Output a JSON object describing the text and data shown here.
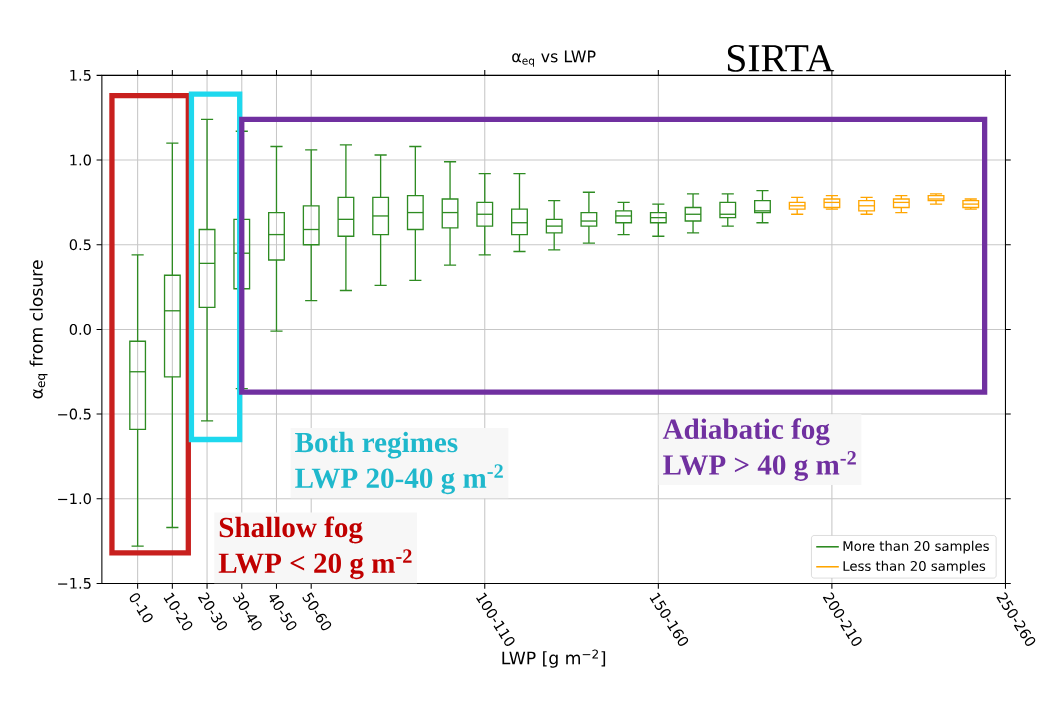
{
  "chart_data": {
    "type": "box",
    "title": "α$_{eq}$ vs LWP",
    "xlabel": "LWP [g m$^{−2}$]",
    "ylabel": "α$_{eq}$ from closure",
    "annotations": [
      "SIRTA",
      "Shallow fog",
      "LWP < 20 g m$^{-2}$",
      "Both regimes",
      "LWP 20-40 g m$^{-2}$",
      "Adiabatic fog",
      "LWP > 40 g m$^{-2}$"
    ],
    "categories": [
      "0-10",
      "10-20",
      "20-30",
      "30-40",
      "40-50",
      "50-60",
      null,
      null,
      null,
      null,
      "100-110",
      null,
      null,
      null,
      null,
      "150-160",
      null,
      null,
      null,
      null,
      "200-210",
      null,
      null,
      null,
      null,
      "250-260"
    ],
    "series": [
      {
        "name": "More than 20 samples",
        "color": "#2e8b22",
        "boxes": [
          {
            "low": -1.28,
            "q1": -0.59,
            "median": -0.25,
            "q3": -0.07,
            "high": 0.44
          },
          {
            "low": -1.17,
            "q1": -0.28,
            "median": 0.11,
            "q3": 0.32,
            "high": 1.1
          },
          {
            "low": -0.54,
            "q1": 0.13,
            "median": 0.39,
            "q3": 0.59,
            "high": 1.24
          },
          {
            "low": -0.35,
            "q1": 0.24,
            "median": 0.45,
            "q3": 0.65,
            "high": 1.17
          },
          {
            "low": -0.01,
            "q1": 0.41,
            "median": 0.56,
            "q3": 0.69,
            "high": 1.08
          },
          {
            "low": 0.17,
            "q1": 0.5,
            "median": 0.59,
            "q3": 0.73,
            "high": 1.06
          },
          {
            "low": 0.23,
            "q1": 0.55,
            "median": 0.65,
            "q3": 0.78,
            "high": 1.09
          },
          {
            "low": 0.26,
            "q1": 0.56,
            "median": 0.67,
            "q3": 0.78,
            "high": 1.03
          },
          {
            "low": 0.29,
            "q1": 0.59,
            "median": 0.69,
            "q3": 0.79,
            "high": 1.08
          },
          {
            "low": 0.38,
            "q1": 0.6,
            "median": 0.69,
            "q3": 0.77,
            "high": 0.99
          },
          {
            "low": 0.44,
            "q1": 0.61,
            "median": 0.68,
            "q3": 0.75,
            "high": 0.92
          },
          {
            "low": 0.46,
            "q1": 0.56,
            "median": 0.63,
            "q3": 0.71,
            "high": 0.92
          },
          {
            "low": 0.47,
            "q1": 0.57,
            "median": 0.61,
            "q3": 0.65,
            "high": 0.76
          },
          {
            "low": 0.51,
            "q1": 0.61,
            "median": 0.64,
            "q3": 0.69,
            "high": 0.81
          },
          {
            "low": 0.56,
            "q1": 0.63,
            "median": 0.67,
            "q3": 0.7,
            "high": 0.75
          },
          {
            "low": 0.55,
            "q1": 0.63,
            "median": 0.66,
            "q3": 0.69,
            "high": 0.74
          },
          {
            "low": 0.57,
            "q1": 0.64,
            "median": 0.68,
            "q3": 0.72,
            "high": 0.8
          },
          {
            "low": 0.61,
            "q1": 0.66,
            "median": 0.68,
            "q3": 0.75,
            "high": 0.8
          },
          {
            "low": 0.63,
            "q1": 0.69,
            "median": 0.7,
            "q3": 0.76,
            "high": 0.82
          },
          null,
          null,
          null,
          null,
          null,
          null,
          null
        ]
      },
      {
        "name": "Less than 20 samples",
        "color": "#ffa500",
        "boxes": [
          null,
          null,
          null,
          null,
          null,
          null,
          null,
          null,
          null,
          null,
          null,
          null,
          null,
          null,
          null,
          null,
          null,
          null,
          null,
          {
            "low": 0.68,
            "q1": 0.71,
            "median": 0.73,
            "q3": 0.75,
            "high": 0.78
          },
          {
            "low": 0.71,
            "q1": 0.72,
            "median": 0.75,
            "q3": 0.77,
            "high": 0.79
          },
          {
            "low": 0.68,
            "q1": 0.7,
            "median": 0.73,
            "q3": 0.76,
            "high": 0.78
          },
          {
            "low": 0.69,
            "q1": 0.72,
            "median": 0.75,
            "q3": 0.77,
            "high": 0.79
          },
          {
            "low": 0.74,
            "q1": 0.76,
            "median": 0.77,
            "q3": 0.79,
            "high": 0.8
          },
          {
            "low": 0.71,
            "q1": 0.72,
            "median": 0.74,
            "q3": 0.76,
            "high": 0.77
          },
          null
        ]
      }
    ],
    "ylim": [
      -1.5,
      1.5
    ],
    "yticks": [
      {
        "value": -1.5,
        "label": "−1.5"
      },
      {
        "value": -1.0,
        "label": "−1.0"
      },
      {
        "value": -0.5,
        "label": "−0.5"
      },
      {
        "value": 0.0,
        "label": "0.0"
      },
      {
        "value": 0.5,
        "label": "0.5"
      },
      {
        "value": 1.0,
        "label": "1.0"
      },
      {
        "value": 1.5,
        "label": "1.5"
      }
    ],
    "grid": true,
    "legend": "bottom right"
  }
}
